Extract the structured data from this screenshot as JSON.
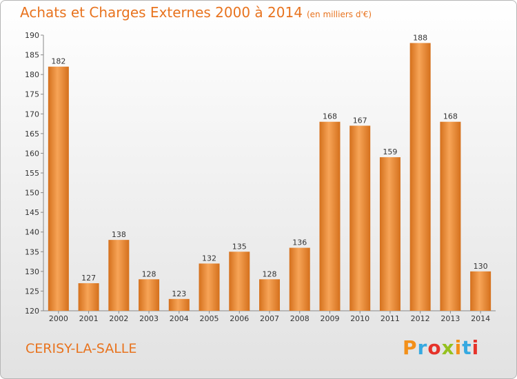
{
  "title": "Achats et Charges Externes 2000 à 2014",
  "subtitle": "(en milliers d'€)",
  "location": "CERISY-LA-SALLE",
  "logo": {
    "text": "Proxiti",
    "colors": [
      "#f39019",
      "#36a9e1",
      "#e6332a",
      "#95c11f",
      "#f39019",
      "#36a9e1",
      "#e6332a"
    ]
  },
  "colors": {
    "bar_top": "#f7a457",
    "bar_bottom": "#d4701c",
    "title": "#e8731e"
  },
  "chart_data": {
    "type": "bar",
    "categories": [
      "2000",
      "2001",
      "2002",
      "2003",
      "2004",
      "2005",
      "2006",
      "2007",
      "2008",
      "2009",
      "2010",
      "2011",
      "2012",
      "2013",
      "2014"
    ],
    "values": [
      182,
      127,
      138,
      128,
      123,
      132,
      135,
      128,
      136,
      168,
      167,
      159,
      188,
      168,
      130
    ],
    "ylim": [
      120,
      190
    ],
    "yticks": [
      120,
      125,
      130,
      135,
      140,
      145,
      150,
      155,
      160,
      165,
      170,
      175,
      180,
      185,
      190
    ],
    "grid": false
  }
}
